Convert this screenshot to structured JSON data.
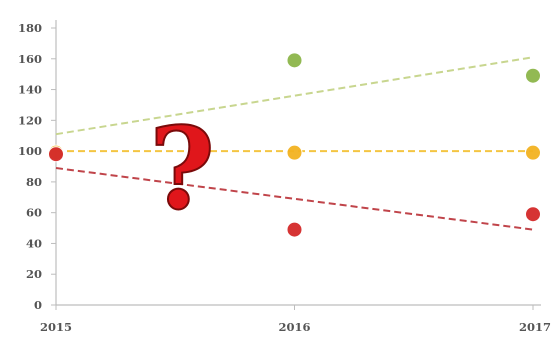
{
  "chart_data": {
    "type": "scatter",
    "title": "",
    "xlabel": "",
    "ylabel": "",
    "x": [
      2015,
      2016,
      2017
    ],
    "xlim": [
      2015,
      2017
    ],
    "ylim": [
      0,
      180
    ],
    "yticks": [
      0,
      20,
      40,
      60,
      80,
      100,
      120,
      140,
      160,
      180
    ],
    "xticks": [
      2015,
      2016,
      2017
    ],
    "grid": false,
    "legend": "none",
    "annotation": "?",
    "series": [
      {
        "color": "#8db64a",
        "points": [
          {
            "x": 2016,
            "y": 159
          },
          {
            "x": 2017,
            "y": 149
          }
        ],
        "trendline": {
          "from": {
            "x": 2015,
            "y": 111
          },
          "to": {
            "x": 2017,
            "y": 161
          },
          "color": "#c8d68f"
        }
      },
      {
        "color": "#f3b321",
        "points": [
          {
            "x": 2015,
            "y": 99
          },
          {
            "x": 2016,
            "y": 99
          },
          {
            "x": 2017,
            "y": 99
          }
        ],
        "trendline": {
          "from": {
            "x": 2015,
            "y": 100
          },
          "to": {
            "x": 2017,
            "y": 100
          },
          "color": "#f4c542"
        }
      },
      {
        "color": "#d42a2a",
        "points": [
          {
            "x": 2015,
            "y": 98
          },
          {
            "x": 2016,
            "y": 49
          },
          {
            "x": 2017,
            "y": 59
          }
        ],
        "trendline": {
          "from": {
            "x": 2015,
            "y": 89
          },
          "to": {
            "x": 2017,
            "y": 49
          },
          "color": "#c0444a"
        }
      }
    ]
  }
}
